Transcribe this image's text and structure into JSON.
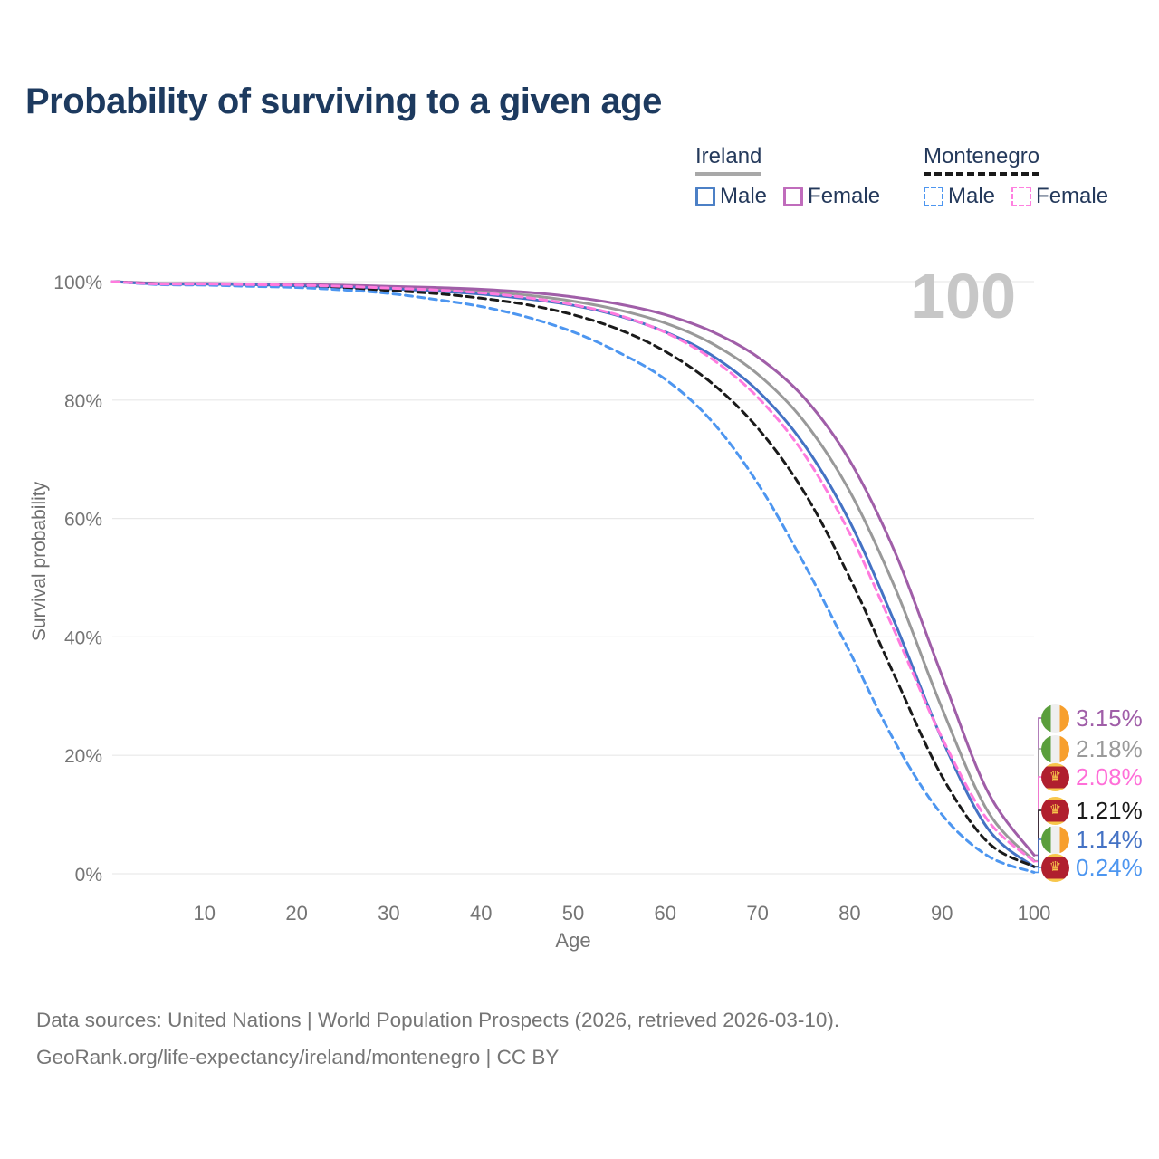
{
  "header": {
    "title": "Probability of surviving to a given age"
  },
  "legend": {
    "groups": [
      {
        "label": "Ireland",
        "line_style": "solid",
        "underline_color": "#A8A8A8",
        "items": [
          {
            "label": "Male",
            "color": "#4C80C6"
          },
          {
            "label": "Female",
            "color": "#C06CBC"
          }
        ]
      },
      {
        "label": "Montenegro",
        "line_style": "dashed",
        "underline_color": "#1A1A1A",
        "items": [
          {
            "label": "Male",
            "color": "#4D96F0"
          },
          {
            "label": "Female",
            "color": "#FF80E0"
          }
        ]
      }
    ]
  },
  "chart_data": {
    "type": "line",
    "title": "Probability of surviving to a given age",
    "xlabel": "Age",
    "ylabel": "Survival probability",
    "watermark": "100",
    "xlim": [
      0,
      100
    ],
    "ylim": [
      0,
      100
    ],
    "grid": "horizontal",
    "x_ticks": [
      10,
      20,
      30,
      40,
      50,
      60,
      70,
      80,
      90,
      100
    ],
    "y_ticks": [
      {
        "value": 100,
        "label": "100%"
      },
      {
        "value": 80,
        "label": "80%"
      },
      {
        "value": 60,
        "label": "60%"
      },
      {
        "value": 40,
        "label": "40%"
      },
      {
        "value": 20,
        "label": "20%"
      },
      {
        "value": 0,
        "label": "0%"
      }
    ],
    "x": [
      0,
      5,
      10,
      15,
      20,
      25,
      30,
      35,
      40,
      45,
      50,
      55,
      60,
      65,
      70,
      75,
      80,
      85,
      90,
      95,
      100
    ],
    "series": [
      {
        "id": "ireland-all",
        "country": "Ireland",
        "group": "all",
        "color": "#999999",
        "style": "solid",
        "values": [
          100,
          99.7,
          99.6,
          99.5,
          99.4,
          99.2,
          99.0,
          98.7,
          98.3,
          97.7,
          96.7,
          95.2,
          93.0,
          89.6,
          84.4,
          76.5,
          64.6,
          48.0,
          28.0,
          10.5,
          2.18
        ]
      },
      {
        "id": "ireland-female",
        "country": "Ireland",
        "group": "Female",
        "color": "#A05EA8",
        "style": "solid",
        "values": [
          100,
          99.7,
          99.7,
          99.6,
          99.5,
          99.4,
          99.2,
          99.0,
          98.7,
          98.2,
          97.4,
          96.2,
          94.4,
          91.6,
          87.3,
          80.5,
          69.8,
          54.0,
          33.5,
          13.8,
          3.15
        ]
      },
      {
        "id": "ireland-male",
        "country": "Ireland",
        "group": "Male",
        "color": "#4472C4",
        "style": "solid",
        "values": [
          100,
          99.6,
          99.6,
          99.5,
          99.3,
          99.1,
          98.8,
          98.4,
          97.9,
          97.1,
          96.0,
          94.2,
          91.5,
          87.6,
          81.6,
          72.6,
          59.5,
          42.0,
          22.8,
          7.6,
          1.14
        ]
      },
      {
        "id": "montenegro-all",
        "country": "Montenegro",
        "group": "all",
        "color": "#1A1A1A",
        "style": "dashed",
        "values": [
          100,
          99.6,
          99.5,
          99.4,
          99.2,
          98.9,
          98.5,
          98.0,
          97.2,
          96.1,
          94.4,
          91.9,
          88.2,
          82.9,
          75.3,
          64.6,
          50.0,
          33.0,
          16.5,
          5.3,
          1.21
        ]
      },
      {
        "id": "montenegro-male",
        "country": "Montenegro",
        "group": "Male",
        "color": "#4D96F0",
        "style": "dashed",
        "values": [
          100,
          99.5,
          99.4,
          99.2,
          99.0,
          98.6,
          98.0,
          97.0,
          95.8,
          94.0,
          91.5,
          88.0,
          83.5,
          76.5,
          66.0,
          52.5,
          37.5,
          22.0,
          10.0,
          3.0,
          0.24
        ]
      },
      {
        "id": "montenegro-female",
        "country": "Montenegro",
        "group": "Female",
        "color": "#FF7BDE",
        "style": "dashed",
        "values": [
          100,
          99.6,
          99.6,
          99.5,
          99.4,
          99.2,
          98.9,
          98.6,
          98.1,
          97.3,
          96.1,
          94.3,
          91.4,
          87.0,
          80.5,
          71.0,
          57.5,
          40.5,
          23.0,
          9.0,
          2.08
        ]
      }
    ],
    "end_labels": [
      {
        "text": "3.15%",
        "color": "#A05EA8",
        "flag": "ireland",
        "series": "ireland-female"
      },
      {
        "text": "2.18%",
        "color": "#9A9A9A",
        "flag": "ireland",
        "series": "ireland-all"
      },
      {
        "text": "2.08%",
        "color": "#FF6FD8",
        "flag": "montenegro",
        "series": "montenegro-female"
      },
      {
        "text": "1.21%",
        "color": "#1A1A1A",
        "flag": "montenegro",
        "series": "montenegro-all"
      },
      {
        "text": "1.14%",
        "color": "#4472C4",
        "flag": "ireland",
        "series": "ireland-male"
      },
      {
        "text": "0.24%",
        "color": "#4D96F0",
        "flag": "montenegro",
        "series": "montenegro-male"
      }
    ]
  },
  "footer": {
    "line1": "Data sources: United Nations | World Population Prospects (2026, retrieved 2026-03-10).",
    "line2": "GeoRank.org/life-expectancy/ireland/montenegro | CC BY"
  }
}
